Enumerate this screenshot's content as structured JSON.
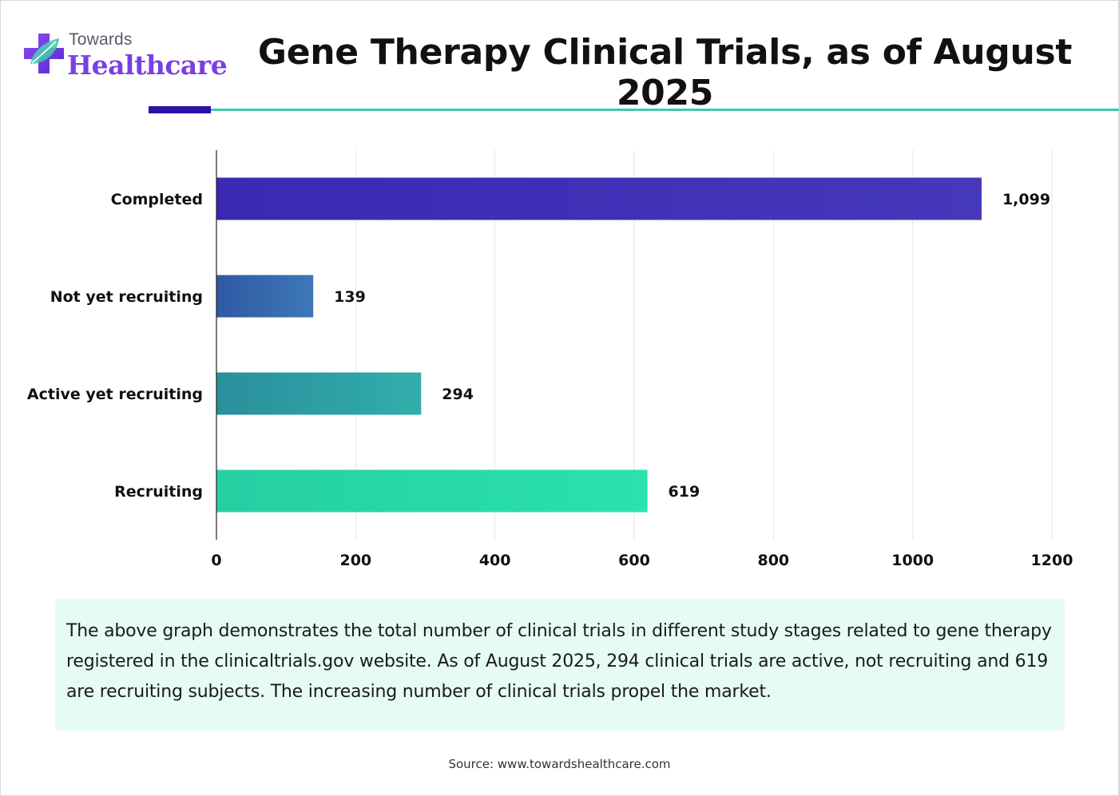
{
  "brand": {
    "small": "Towards",
    "big": "Healthcare",
    "colors": {
      "purple": "#7a3fe4",
      "teal": "#3ec9ab",
      "navy": "#2e0fa8"
    }
  },
  "header": {
    "title": "Gene Therapy Clinical Trials, as of August 2025"
  },
  "chart_data": {
    "type": "bar",
    "orientation": "horizontal",
    "categories": [
      "Completed",
      "Not yet recruiting",
      "Active  yet recruiting",
      "Recruiting"
    ],
    "values": [
      1099,
      139,
      294,
      619
    ],
    "value_labels": [
      "1,099",
      "139",
      "294",
      "619"
    ],
    "bar_colors": [
      [
        "#3b28b3",
        "#4638ba"
      ],
      [
        "#3059a3",
        "#3c78b8"
      ],
      [
        "#2a8f9c",
        "#31aeac"
      ],
      [
        "#26cfa3",
        "#2ae2ad"
      ]
    ],
    "xlim": [
      0,
      1200
    ],
    "xticks": [
      0,
      200,
      400,
      600,
      800,
      1000,
      1200
    ],
    "grid": "vertical",
    "title": "",
    "xlabel": "",
    "ylabel": ""
  },
  "note": {
    "text": "The above graph demonstrates the total number of clinical trials in different study stages related to gene therapy registered in the clinicaltrials.gov website. As of August 2025, 294 clinical trials are active, not recruiting and 619 are recruiting subjects. The increasing number of clinical trials propel the market."
  },
  "footer": {
    "source": "Source: www.towardshealthcare.com"
  }
}
